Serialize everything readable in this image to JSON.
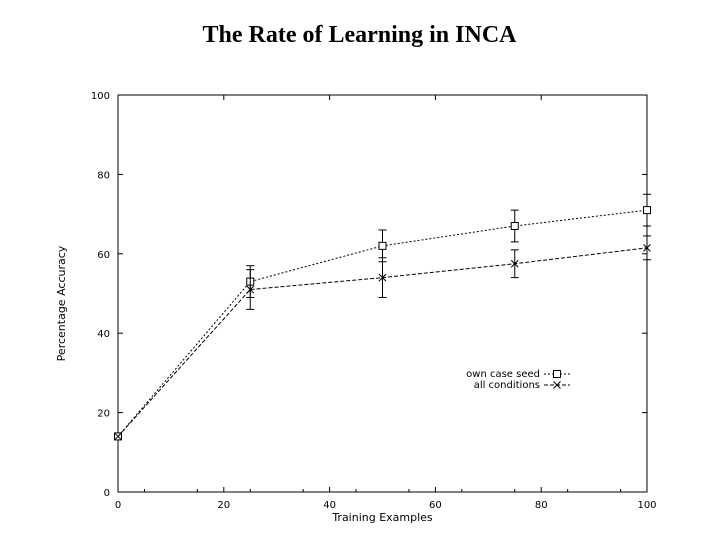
{
  "chart_data": {
    "type": "line",
    "title": "The Rate of Learning in INCA",
    "xlabel": "Training Examples",
    "ylabel": "Percentage Accuracy",
    "xlim": [
      0,
      100
    ],
    "ylim": [
      0,
      100
    ],
    "x_ticks": [
      "0",
      "20",
      "40",
      "60",
      "80",
      "100"
    ],
    "y_ticks": [
      "0",
      "20",
      "40",
      "60",
      "80",
      "100"
    ],
    "grid": false,
    "legend_position": "center-right",
    "series": [
      {
        "name": "own case seed",
        "marker": "square",
        "line_style": "dotted",
        "x": [
          0,
          25,
          50,
          75,
          100
        ],
        "y": [
          14,
          53,
          62,
          67,
          71
        ],
        "err": [
          0,
          4,
          4,
          4,
          4
        ]
      },
      {
        "name": "all conditions",
        "marker": "x",
        "line_style": "dashed",
        "x": [
          0,
          25,
          50,
          75,
          100
        ],
        "y": [
          14,
          51,
          54,
          57.5,
          61.5
        ],
        "err": [
          0,
          5,
          5,
          3.5,
          3
        ]
      }
    ]
  }
}
